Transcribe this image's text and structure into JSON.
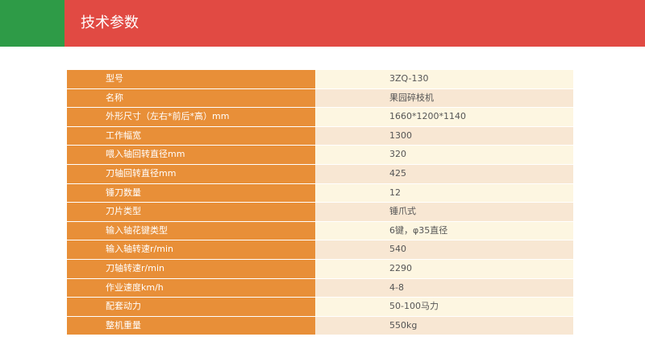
{
  "header": {
    "title": "技术参数"
  },
  "specs": [
    {
      "label": "型号",
      "value": "3ZQ-130"
    },
    {
      "label": "名称",
      "value": "果园碎枝机"
    },
    {
      "label": "外形尺寸（左右*前后*高）mm",
      "value": "1660*1200*1140"
    },
    {
      "label": "工作幅宽",
      "value": "1300"
    },
    {
      "label": "喂入轴回转直径mm",
      "value": "320"
    },
    {
      "label": "刀轴回转直径mm",
      "value": "425"
    },
    {
      "label": "锤刀数量",
      "value": "12"
    },
    {
      "label": "刀片类型",
      "value": "锤爪式"
    },
    {
      "label": "输入轴花键类型",
      "value": "6键，φ35直径"
    },
    {
      "label": "输入轴转速r/min",
      "value": "540"
    },
    {
      "label": "刀轴转速r/min",
      "value": "2290"
    },
    {
      "label": "作业速度km/h",
      "value": "4-8"
    },
    {
      "label": "配套动力",
      "value": "50-100马力"
    },
    {
      "label": "整机重量",
      "value": "550kg"
    }
  ]
}
